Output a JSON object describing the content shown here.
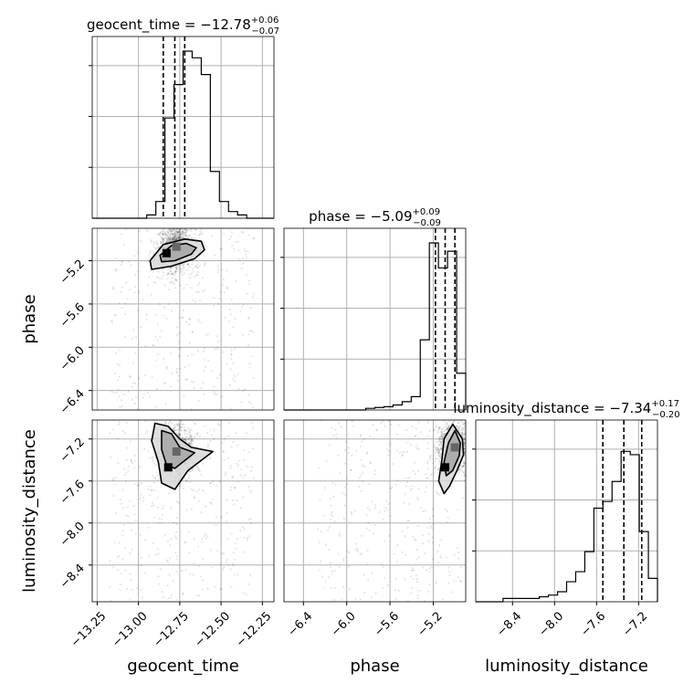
{
  "chart_data": {
    "type": "corner",
    "parameters": [
      "geocent_time",
      "phase",
      "luminosity_distance"
    ],
    "titles": [
      {
        "parameter": "geocent_time",
        "prefix": "geocent_time = ",
        "median": "−12.78",
        "plus": "+0.06",
        "minus": "−0.07"
      },
      {
        "parameter": "phase",
        "prefix": "phase = ",
        "median": "−5.09",
        "plus": "+0.09",
        "minus": "−0.09"
      },
      {
        "parameter": "luminosity_distance",
        "prefix": "luminosity_distance = ",
        "median": "−7.34",
        "plus": "+0.17",
        "minus": "−0.20"
      }
    ],
    "axis_labels": {
      "geocent_time": "geocent_time",
      "phase": "phase",
      "luminosity_distance": "luminosity_distance"
    },
    "ranges": {
      "geocent_time": [
        -13.28,
        -12.18
      ],
      "phase": [
        -6.58,
        -4.9
      ],
      "luminosity_distance": [
        -8.75,
        -7.02
      ]
    },
    "ticks": {
      "geocent_time": [
        {
          "value": -13.25,
          "label": "−13.25"
        },
        {
          "value": -13.0,
          "label": "−13.00"
        },
        {
          "value": -12.75,
          "label": "−12.75"
        },
        {
          "value": -12.5,
          "label": "−12.50"
        },
        {
          "value": -12.25,
          "label": "−12.25"
        }
      ],
      "phase": [
        {
          "value": -6.4,
          "label": "−6.4"
        },
        {
          "value": -6.0,
          "label": "−6.0"
        },
        {
          "value": -5.6,
          "label": "−5.6"
        },
        {
          "value": -5.2,
          "label": "−5.2"
        }
      ],
      "luminosity_distance": [
        {
          "value": -8.4,
          "label": "−8.4"
        },
        {
          "value": -8.0,
          "label": "−8.0"
        },
        {
          "value": -7.6,
          "label": "−7.6"
        },
        {
          "value": -7.2,
          "label": "−7.2"
        }
      ]
    },
    "histograms": {
      "geocent_time": {
        "edges": [
          -13.28,
          -13.225,
          -13.17,
          -13.115,
          -13.06,
          -13.005,
          -12.95,
          -12.895,
          -12.84,
          -12.785,
          -12.73,
          -12.675,
          -12.62,
          -12.565,
          -12.51,
          -12.455,
          -12.4,
          -12.345,
          -12.29,
          -12.235,
          -12.18
        ],
        "counts": [
          0,
          0,
          0,
          0,
          0,
          0,
          0.02,
          0.1,
          0.6,
          0.8,
          1.0,
          0.96,
          0.86,
          0.28,
          0.1,
          0.04,
          0.02,
          0.0,
          0.0,
          0.0
        ]
      },
      "phase": {
        "edges": [
          -6.58,
          -6.496,
          -6.412,
          -6.328,
          -6.244,
          -6.16,
          -6.076,
          -5.992,
          -5.908,
          -5.824,
          -5.74,
          -5.656,
          -5.572,
          -5.488,
          -5.404,
          -5.32,
          -5.236,
          -5.152,
          -5.068,
          -4.984,
          -4.9
        ],
        "counts": [
          0,
          0,
          0,
          0,
          0,
          0,
          0,
          0,
          0,
          0.01,
          0.015,
          0.02,
          0.03,
          0.05,
          0.08,
          0.42,
          1.0,
          0.85,
          0.95,
          0.22
        ]
      },
      "luminosity_distance": {
        "edges": [
          -8.75,
          -8.6635,
          -8.577,
          -8.4905,
          -8.404,
          -8.3175,
          -8.231,
          -8.1445,
          -8.058,
          -7.9715,
          -7.885,
          -7.7985,
          -7.712,
          -7.6255,
          -7.539,
          -7.4525,
          -7.366,
          -7.2795,
          -7.193,
          -7.1065,
          -7.02
        ],
        "counts": [
          0,
          0,
          0,
          0.02,
          0.02,
          0.02,
          0.02,
          0.03,
          0.04,
          0.06,
          0.12,
          0.18,
          0.3,
          0.56,
          0.6,
          0.72,
          0.9,
          0.88,
          0.42,
          0.14
        ]
      }
    },
    "quantiles": {
      "geocent_time": [
        -12.85,
        -12.78,
        -12.72
      ],
      "phase": [
        -5.18,
        -5.09,
        -5.0
      ],
      "luminosity_distance": [
        -7.54,
        -7.34,
        -7.17
      ]
    },
    "pairs": [
      {
        "x": "geocent_time",
        "y": "phase",
        "contours": [
          [
            [
              -12.93,
              -5.2
            ],
            [
              -12.85,
              -5.05
            ],
            [
              -12.72,
              -5.0
            ],
            [
              -12.62,
              -5.02
            ],
            [
              -12.6,
              -5.1
            ],
            [
              -12.66,
              -5.18
            ],
            [
              -12.8,
              -5.25
            ],
            [
              -12.92,
              -5.28
            ]
          ],
          [
            [
              -12.87,
              -5.15
            ],
            [
              -12.8,
              -5.06
            ],
            [
              -12.71,
              -5.04
            ],
            [
              -12.65,
              -5.08
            ],
            [
              -12.68,
              -5.14
            ],
            [
              -12.78,
              -5.2
            ],
            [
              -12.86,
              -5.21
            ]
          ]
        ],
        "peaks": [
          [
            -12.83,
            -5.13
          ],
          [
            -12.77,
            -5.07
          ]
        ],
        "sample_seed": 7
      },
      {
        "x": "geocent_time",
        "y": "luminosity_distance",
        "contours": [
          [
            [
              -12.9,
              -7.05
            ],
            [
              -12.82,
              -7.08
            ],
            [
              -12.75,
              -7.2
            ],
            [
              -12.68,
              -7.28
            ],
            [
              -12.55,
              -7.32
            ],
            [
              -12.7,
              -7.5
            ],
            [
              -12.78,
              -7.68
            ],
            [
              -12.86,
              -7.62
            ],
            [
              -12.88,
              -7.42
            ],
            [
              -12.92,
              -7.22
            ]
          ],
          [
            [
              -12.86,
              -7.12
            ],
            [
              -12.8,
              -7.15
            ],
            [
              -12.75,
              -7.28
            ],
            [
              -12.66,
              -7.33
            ],
            [
              -12.78,
              -7.48
            ],
            [
              -12.83,
              -7.45
            ],
            [
              -12.86,
              -7.3
            ]
          ]
        ],
        "peaks": [
          [
            -12.82,
            -7.47
          ],
          [
            -12.77,
            -7.32
          ]
        ],
        "sample_seed": 13
      },
      {
        "x": "phase",
        "y": "luminosity_distance",
        "contours": [
          [
            [
              -5.02,
              -7.06
            ],
            [
              -4.93,
              -7.2
            ],
            [
              -4.92,
              -7.35
            ],
            [
              -4.98,
              -7.5
            ],
            [
              -5.05,
              -7.65
            ],
            [
              -5.1,
              -7.72
            ],
            [
              -5.15,
              -7.6
            ],
            [
              -5.12,
              -7.4
            ],
            [
              -5.1,
              -7.2
            ]
          ],
          [
            [
              -5.0,
              -7.12
            ],
            [
              -4.95,
              -7.24
            ],
            [
              -4.96,
              -7.36
            ],
            [
              -5.02,
              -7.5
            ],
            [
              -5.08,
              -7.55
            ],
            [
              -5.1,
              -7.42
            ],
            [
              -5.06,
              -7.24
            ]
          ]
        ],
        "peaks": [
          [
            -5.09,
            -7.47
          ],
          [
            -5.0,
            -7.28
          ]
        ],
        "sample_seed": 29
      }
    ]
  }
}
